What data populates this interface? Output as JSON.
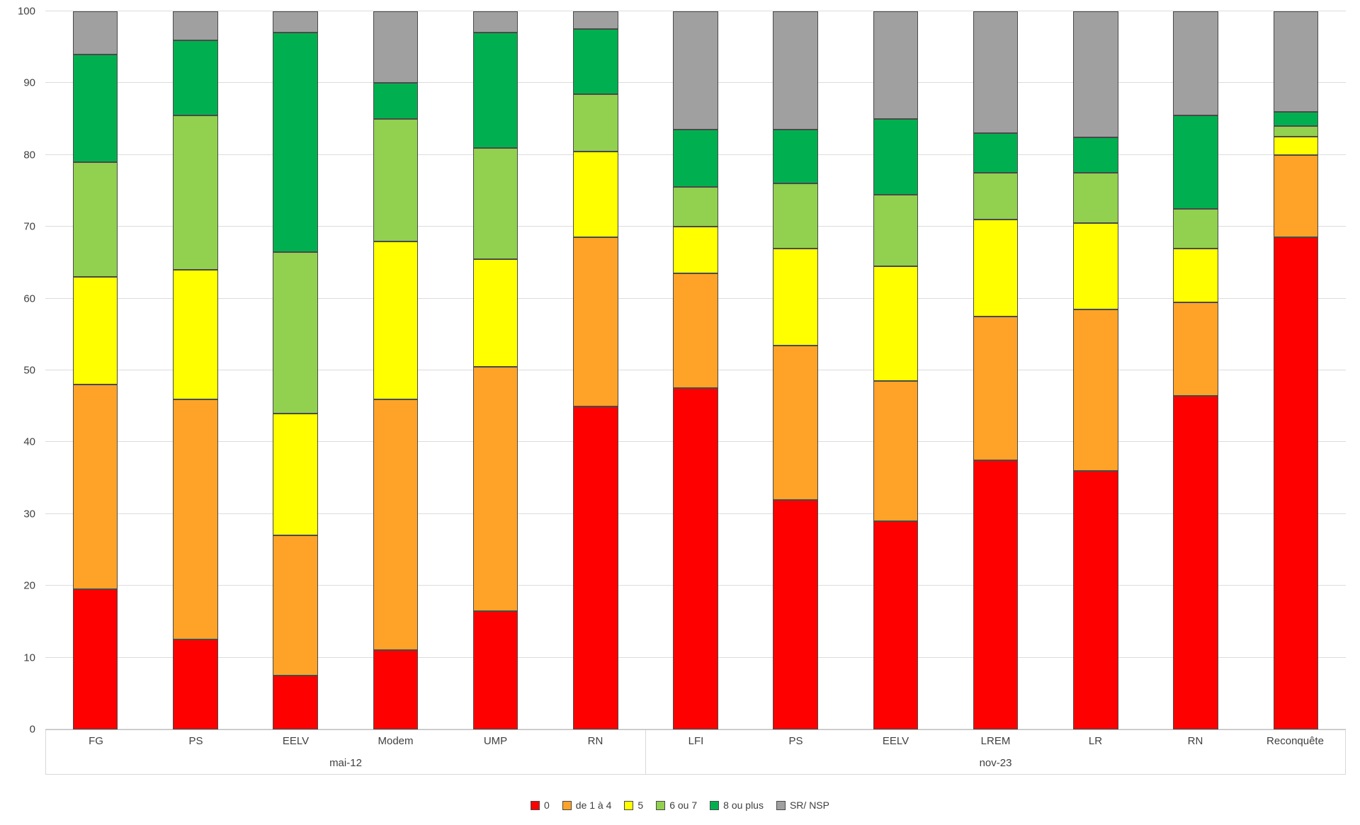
{
  "chart_data": {
    "type": "bar",
    "variant": "stacked-100-percent",
    "title": "",
    "ylabel": "",
    "xlabel": "",
    "ylim": [
      0,
      100
    ],
    "yticks": [
      0,
      10,
      20,
      30,
      40,
      50,
      60,
      70,
      80,
      90,
      100
    ],
    "grid": true,
    "legend_position": "bottom-center",
    "series_names": [
      "0",
      "de 1 à 4",
      "5",
      "6 ou 7",
      "8 ou plus",
      "SR/ NSP"
    ],
    "series_colors": [
      "#fe0000",
      "#ffa328",
      "#ffff00",
      "#92d050",
      "#00b050",
      "#a0a0a0"
    ],
    "groups": [
      {
        "label": "mai-12",
        "categories": [
          "FG",
          "PS",
          "EELV",
          "Modem",
          "UMP",
          "RN"
        ],
        "values": [
          [
            19.5,
            28.5,
            15.0,
            16.0,
            15.0,
            6.0
          ],
          [
            12.5,
            33.5,
            18.0,
            21.5,
            10.5,
            4.0
          ],
          [
            7.5,
            19.5,
            17.0,
            22.5,
            30.5,
            3.0
          ],
          [
            11.0,
            35.0,
            22.0,
            17.0,
            5.0,
            10.0
          ],
          [
            16.5,
            34.0,
            15.0,
            15.5,
            16.0,
            3.0
          ],
          [
            45.0,
            23.5,
            12.0,
            8.0,
            9.0,
            2.5
          ]
        ]
      },
      {
        "label": "nov-23",
        "categories": [
          "LFI",
          "PS",
          "EELV",
          "LREM",
          "LR",
          "RN",
          "Reconquête"
        ],
        "values": [
          [
            47.5,
            16.0,
            6.5,
            5.5,
            8.0,
            16.5
          ],
          [
            32.0,
            21.5,
            13.5,
            9.0,
            7.5,
            16.5
          ],
          [
            29.0,
            19.5,
            16.0,
            10.0,
            10.5,
            15.0
          ],
          [
            37.5,
            20.0,
            13.5,
            6.5,
            5.5,
            17.0
          ],
          [
            36.0,
            22.5,
            12.0,
            7.0,
            5.0,
            17.5
          ],
          [
            46.5,
            13.0,
            7.5,
            5.5,
            13.0,
            14.5
          ],
          [
            68.5,
            11.5,
            2.5,
            1.5,
            2.0,
            14.0
          ]
        ]
      }
    ]
  },
  "colors": {
    "gridline": "#dcdcdc",
    "axis_text": "#3f3f3f",
    "segment_border": "#4a4a4a"
  }
}
